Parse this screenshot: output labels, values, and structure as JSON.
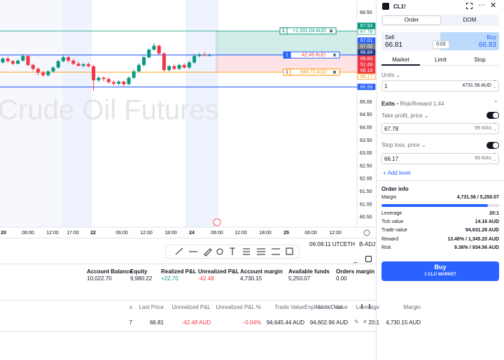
{
  "chart": {
    "watermark": "Crude Oil Futures",
    "ylim": [
      60.11,
      68.99
    ],
    "yticks": [
      {
        "value": 68.5,
        "label": "68.50"
      },
      {
        "value": 68,
        "label": "68.00"
      },
      {
        "value": 65,
        "label": "65.00"
      },
      {
        "value": 64.5,
        "label": "64.50"
      },
      {
        "value": 64,
        "label": "64.00"
      },
      {
        "value": 63.5,
        "label": "63.50"
      },
      {
        "value": 63,
        "label": "63.00"
      },
      {
        "value": 62.5,
        "label": "62.50"
      },
      {
        "value": 62,
        "label": "62.00"
      },
      {
        "value": 61.5,
        "label": "61.50"
      },
      {
        "value": 61,
        "label": "61.00"
      },
      {
        "value": 60.5,
        "label": "60.50"
      }
    ],
    "up_color": "#089981",
    "down_color": "#f23645",
    "candles": [
      {
        "o": 66.55,
        "h": 66.75,
        "l": 66.5,
        "c": 66.7
      },
      {
        "o": 66.7,
        "h": 66.78,
        "l": 66.55,
        "c": 66.6
      },
      {
        "o": 66.6,
        "h": 66.65,
        "l": 66.45,
        "c": 66.5
      },
      {
        "o": 66.5,
        "h": 66.68,
        "l": 66.46,
        "c": 66.62
      },
      {
        "o": 66.62,
        "h": 66.88,
        "l": 66.58,
        "c": 66.8
      },
      {
        "o": 66.8,
        "h": 66.85,
        "l": 66.4,
        "c": 66.45
      },
      {
        "o": 66.45,
        "h": 66.5,
        "l": 66.22,
        "c": 66.3
      },
      {
        "o": 66.3,
        "h": 66.35,
        "l": 66.05,
        "c": 66.15
      },
      {
        "o": 66.15,
        "h": 66.22,
        "l": 65.98,
        "c": 66.05
      },
      {
        "o": 66.05,
        "h": 66.25,
        "l": 66.0,
        "c": 66.2
      },
      {
        "o": 66.2,
        "h": 66.4,
        "l": 66.15,
        "c": 66.35
      },
      {
        "o": 66.35,
        "h": 66.65,
        "l": 66.3,
        "c": 66.6
      },
      {
        "o": 66.6,
        "h": 66.82,
        "l": 66.55,
        "c": 66.75
      },
      {
        "o": 66.75,
        "h": 66.8,
        "l": 66.55,
        "c": 66.62
      },
      {
        "o": 66.62,
        "h": 66.68,
        "l": 66.45,
        "c": 66.5
      },
      {
        "o": 66.5,
        "h": 66.58,
        "l": 66.38,
        "c": 66.42
      },
      {
        "o": 66.42,
        "h": 66.52,
        "l": 66.35,
        "c": 66.48
      },
      {
        "o": 66.48,
        "h": 66.55,
        "l": 66.35,
        "c": 66.4
      },
      {
        "o": 66.4,
        "h": 66.45,
        "l": 65.45,
        "c": 65.85
      },
      {
        "o": 65.85,
        "h": 66.02,
        "l": 65.78,
        "c": 65.95
      },
      {
        "o": 65.95,
        "h": 66.0,
        "l": 65.82,
        "c": 65.9
      },
      {
        "o": 65.9,
        "h": 65.95,
        "l": 65.72,
        "c": 65.78
      },
      {
        "o": 65.78,
        "h": 65.85,
        "l": 65.65,
        "c": 65.72
      },
      {
        "o": 65.72,
        "h": 65.86,
        "l": 65.66,
        "c": 65.8
      },
      {
        "o": 65.8,
        "h": 65.84,
        "l": 65.62,
        "c": 65.7
      },
      {
        "o": 65.7,
        "h": 66.0,
        "l": 65.66,
        "c": 65.95
      },
      {
        "o": 65.95,
        "h": 66.28,
        "l": 65.9,
        "c": 66.2
      },
      {
        "o": 66.2,
        "h": 66.52,
        "l": 66.15,
        "c": 66.45
      },
      {
        "o": 66.45,
        "h": 66.82,
        "l": 66.4,
        "c": 66.75
      },
      {
        "o": 66.75,
        "h": 67.1,
        "l": 66.7,
        "c": 67.05
      },
      {
        "o": 67.05,
        "h": 67.3,
        "l": 67.0,
        "c": 67.2
      },
      {
        "o": 67.2,
        "h": 67.25,
        "l": 66.85,
        "c": 66.9
      },
      {
        "o": 66.9,
        "h": 66.95,
        "l": 66.2,
        "c": 66.25
      },
      {
        "o": 66.25,
        "h": 66.45,
        "l": 66.2,
        "c": 66.4
      },
      {
        "o": 66.4,
        "h": 66.48,
        "l": 66.25,
        "c": 66.3
      },
      {
        "o": 66.3,
        "h": 66.5,
        "l": 66.25,
        "c": 66.45
      },
      {
        "o": 66.45,
        "h": 66.52,
        "l": 66.3,
        "c": 66.35
      },
      {
        "o": 66.35,
        "h": 66.6,
        "l": 66.3,
        "c": 66.55
      },
      {
        "o": 66.55,
        "h": 66.88,
        "l": 66.5,
        "c": 66.8
      },
      {
        "o": 66.8,
        "h": 66.92,
        "l": 66.75,
        "c": 66.85
      },
      {
        "o": 66.85,
        "h": 66.95,
        "l": 66.78,
        "c": 66.82
      },
      {
        "o": 66.82,
        "h": 66.9,
        "l": 66.78,
        "c": 66.83
      }
    ],
    "lines": [
      {
        "value": 67.78,
        "color": "#089981",
        "label": {
          "qty": "1",
          "pnl": "+1,331.04 AUD",
          "color": "#089981"
        }
      },
      {
        "value": 66.84,
        "color": "#2962ff",
        "label": {
          "qty": "1",
          "pnl": "-42.48 AUD",
          "color": "#f23645"
        }
      },
      {
        "value": 66.17,
        "color": "#ff9800",
        "label": {
          "qty": "1",
          "pnl": "-946.72 AUD",
          "color": "#ff9800"
        }
      },
      {
        "value": 65.59,
        "color": "#2962ff"
      }
    ],
    "price_tags": [
      {
        "value": 67.94,
        "label": "67.94",
        "color": "#089981"
      },
      {
        "value": 67.78,
        "label": "67.78",
        "color": "#089981",
        "outline": true
      },
      {
        "value": 67.01,
        "label": "67.01",
        "color": "#2962ff"
      },
      {
        "value": 67.0,
        "label": "67.00",
        "color": "#787b86"
      },
      {
        "value": 66.84,
        "label": "66.84",
        "color": "#1e3a8a"
      },
      {
        "value": 66.83,
        "label": "66.83",
        "color": "#f23645"
      },
      {
        "label": "51:49",
        "color": "#f23645"
      },
      {
        "value": 66.19,
        "label": "66.19",
        "color": "#f23645"
      },
      {
        "value": 66.17,
        "label": "66.17",
        "color": "#ff9800",
        "outline": true
      },
      {
        "value": 65.59,
        "label": "65.59",
        "color": "#2962ff"
      }
    ],
    "time_labels": [
      "20",
      "06:00",
      "12:00",
      "17:00",
      "22",
      "06:00",
      "12:00",
      "18:00",
      "24",
      "06:00",
      "12:00",
      "18:00",
      "25",
      "06:00",
      "12:00"
    ],
    "status": {
      "time": "06:08:11 UTC",
      "session": "ETH",
      "adjustment": "B-ADJ"
    }
  },
  "account_summary": [
    {
      "label": "Account Balance",
      "value": "10,022.70"
    },
    {
      "label": "Equity",
      "value": "9,980.22"
    },
    {
      "label": "Realized P&L",
      "value": "+22.70"
    },
    {
      "label": "Unrealized P&L",
      "value": "-42.48"
    },
    {
      "label": "Account margin",
      "value": "4,730.15"
    },
    {
      "label": "Available funds",
      "value": "5,250.07"
    },
    {
      "label": "Orders margin",
      "value": "0.00"
    }
  ],
  "positions_table": {
    "headers": [
      "s",
      "Last Price",
      "Unrealized P&L",
      "Unrealized P&L %",
      "Trade Value",
      "Market Value",
      "Leverage",
      "Margin",
      "Expiration Date"
    ],
    "rows": [
      [
        "7",
        "66.81",
        "-42.48 AUD",
        "-0.04%",
        "94,645.44 AUD",
        "94,602.96 AUD",
        "20:1",
        "4,730.15 AUD"
      ]
    ]
  },
  "order_panel": {
    "symbol": "CL1!",
    "tabs": [
      "Order",
      "DOM"
    ],
    "sell_label": "Sell",
    "sell_price": "66.81",
    "spread": "0.02",
    "buy_label": "Buy",
    "buy_price": "66.83",
    "order_types": [
      "Market",
      "Limit",
      "Stop"
    ],
    "units_label": "Units",
    "units": "1",
    "units_value": "4731.56 AUD",
    "exits_label": "Exits",
    "risk_reward": "Risk/Reward 1.44",
    "take_profit_label": "Take profit, price",
    "take_profit": "67.78",
    "take_profit_ticks": "95 ticks",
    "stop_loss_label": "Stop loss, price",
    "stop_loss": "66.17",
    "stop_loss_ticks": "66 ticks",
    "add_level": "Add level",
    "order_info_title": "Order info",
    "info": [
      {
        "label": "Margin",
        "value": "4,731.56 / 5,250.07"
      },
      {
        "label": "Leverage",
        "value": "20:1"
      },
      {
        "label": "Tick value",
        "value": "14.16 AUD"
      },
      {
        "label": "Trade value",
        "value": "94,631.28 AUD"
      },
      {
        "label": "Reward",
        "value": "13.48% / 1,345.20 AUD"
      },
      {
        "label": "Risk",
        "value": "9.36% / 934.56 AUD"
      }
    ],
    "button_title": "Buy",
    "button_subtitle": "1 CL1! MARKET"
  }
}
